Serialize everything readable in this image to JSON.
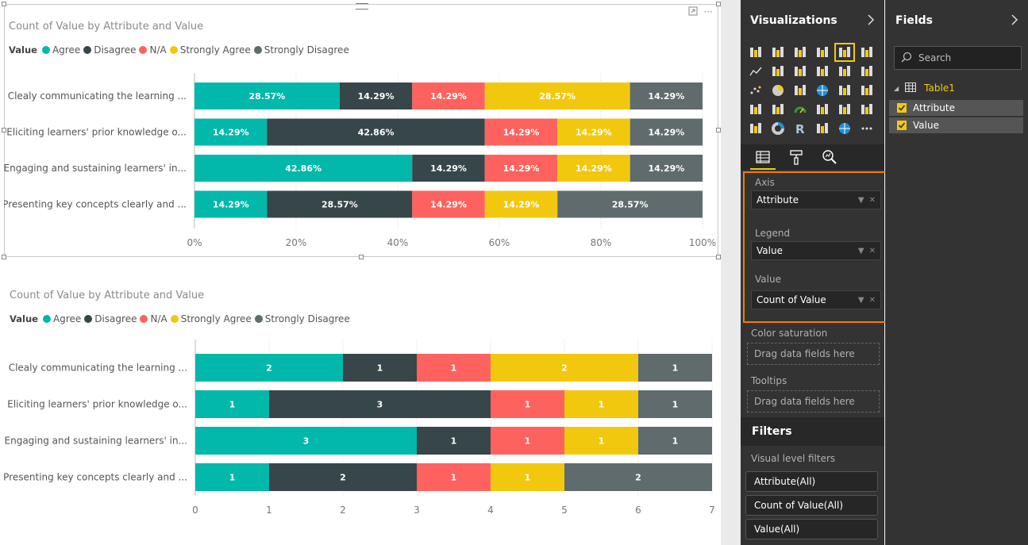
{
  "colors": {
    "agree": "#01b8aa",
    "disagree": "#374649",
    "na": "#fd625e",
    "strongly_agree": "#f2c80f",
    "strongly_disagree": "#5f6b6d",
    "accent": "#f2c811",
    "highlight": "#f57c00"
  },
  "visual1": {
    "title": "Count of Value by Attribute and Value",
    "legend_title": "Value",
    "legend": [
      "Agree",
      "Disagree",
      "N/A",
      "Strongly Agree",
      "Strongly Disagree"
    ]
  },
  "visual2": {
    "title": "Count of Value by Attribute and Value",
    "legend_title": "Value",
    "legend": [
      "Agree",
      "Disagree",
      "N/A",
      "Strongly Agree",
      "Strongly Disagree"
    ]
  },
  "chart_data": [
    {
      "type": "bar",
      "orientation": "horizontal",
      "stacking": "100%",
      "title": "Count of Value by Attribute and Value",
      "categories": [
        "Clealy communicating the learning ...",
        "Eliciting learners' prior knowledge o...",
        "Engaging and sustaining learners' in...",
        "Presenting key concepts clearly and ..."
      ],
      "series": [
        {
          "name": "Agree",
          "values": [
            28.57,
            14.29,
            42.86,
            14.29
          ],
          "labels": [
            "28.57%",
            "14.29%",
            "42.86%",
            "14.29%"
          ]
        },
        {
          "name": "Disagree",
          "values": [
            14.29,
            42.86,
            14.29,
            28.57
          ],
          "labels": [
            "14.29%",
            "42.86%",
            "14.29%",
            "28.57%"
          ]
        },
        {
          "name": "N/A",
          "values": [
            14.29,
            14.29,
            14.29,
            14.29
          ],
          "labels": [
            "14.29%",
            "14.29%",
            "14.29%",
            "14.29%"
          ]
        },
        {
          "name": "Strongly Agree",
          "values": [
            28.57,
            14.29,
            14.29,
            14.29
          ],
          "labels": [
            "28.57%",
            "14.29%",
            "14.29%",
            "14.29%"
          ]
        },
        {
          "name": "Strongly Disagree",
          "values": [
            14.29,
            14.29,
            14.29,
            28.57
          ],
          "labels": [
            "14.29%",
            "14.29%",
            "14.29%",
            "28.57%"
          ]
        }
      ],
      "xlim": [
        0,
        100
      ],
      "xticks": [
        "0%",
        "20%",
        "40%",
        "60%",
        "80%",
        "100%"
      ],
      "legend_position": "top-left"
    },
    {
      "type": "bar",
      "orientation": "horizontal",
      "stacking": "stacked",
      "title": "Count of Value by Attribute and Value",
      "categories": [
        "Clealy communicating the learning ...",
        "Eliciting learners' prior knowledge o...",
        "Engaging and sustaining learners' in...",
        "Presenting key concepts clearly and ..."
      ],
      "series": [
        {
          "name": "Agree",
          "values": [
            2,
            1,
            3,
            1
          ],
          "labels": [
            "2",
            "1",
            "3",
            "1"
          ]
        },
        {
          "name": "Disagree",
          "values": [
            1,
            3,
            1,
            2
          ],
          "labels": [
            "1",
            "3",
            "1",
            "2"
          ]
        },
        {
          "name": "N/A",
          "values": [
            1,
            1,
            1,
            1
          ],
          "labels": [
            "1",
            "1",
            "1",
            "1"
          ]
        },
        {
          "name": "Strongly Agree",
          "values": [
            2,
            1,
            1,
            1
          ],
          "labels": [
            "2",
            "1",
            "1",
            "1"
          ]
        },
        {
          "name": "Strongly Disagree",
          "values": [
            1,
            1,
            1,
            2
          ],
          "labels": [
            "1",
            "1",
            "1",
            "2"
          ]
        }
      ],
      "xlim": [
        0,
        7
      ],
      "xticks": [
        "0",
        "1",
        "2",
        "3",
        "4",
        "5",
        "6",
        "7"
      ],
      "legend_position": "top-left"
    }
  ],
  "viz_pane": {
    "title": "Visualizations",
    "wells": {
      "axis_label": "Axis",
      "axis_field": "Attribute",
      "legend_label": "Legend",
      "legend_field": "Value",
      "value_label": "Value",
      "value_field": "Count of Value",
      "color_label": "Color saturation",
      "color_drop": "Drag data fields here",
      "tooltips_label": "Tooltips",
      "tooltips_drop": "Drag data fields here"
    },
    "filters": {
      "title": "Filters",
      "subtitle": "Visual level filters",
      "items": [
        "Attribute(All)",
        "Count of Value(All)",
        "Value(All)"
      ]
    },
    "more_glyph": "···"
  },
  "fields_pane": {
    "title": "Fields",
    "search_placeholder": "Search",
    "table_name": "Table1",
    "fields": [
      "Attribute",
      "Value"
    ]
  }
}
